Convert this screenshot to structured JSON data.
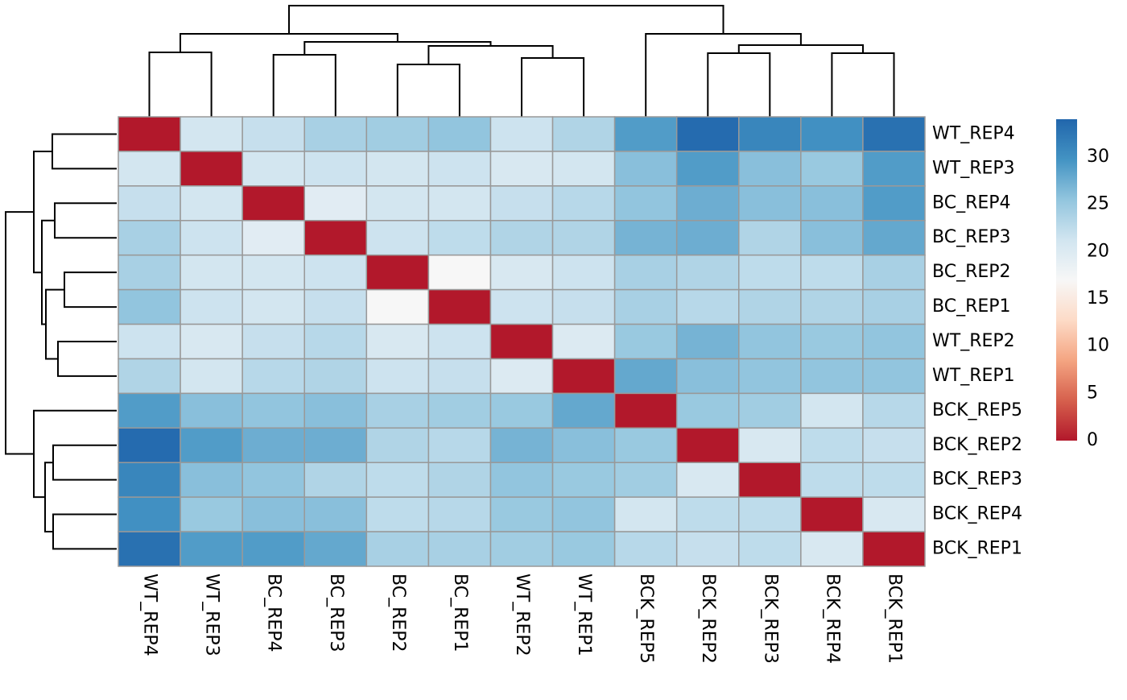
{
  "chart_data": {
    "type": "heatmap",
    "rows": [
      "WT_REP4",
      "WT_REP3",
      "BC_REP4",
      "BC_REP3",
      "BC_REP2",
      "BC_REP1",
      "WT_REP2",
      "WT_REP1",
      "BCK_REP5",
      "BCK_REP2",
      "BCK_REP3",
      "BCK_REP4",
      "BCK_REP1"
    ],
    "columns": [
      "WT_REP4",
      "WT_REP3",
      "BC_REP4",
      "BC_REP3",
      "BC_REP2",
      "BC_REP1",
      "WT_REP2",
      "WT_REP1",
      "BCK_REP5",
      "BCK_REP2",
      "BCK_REP3",
      "BCK_REP4",
      "BCK_REP1"
    ],
    "values": [
      [
        0,
        21,
        22,
        24,
        24.5,
        25.5,
        21.5,
        23.5,
        29,
        33.5,
        31,
        30,
        33
      ],
      [
        21,
        0,
        21,
        21.5,
        21,
        21.5,
        20.5,
        21,
        26,
        29,
        26,
        25,
        29
      ],
      [
        22,
        21,
        0,
        19.5,
        21,
        21,
        22,
        23,
        25.5,
        27.5,
        26,
        26,
        29
      ],
      [
        24,
        21.5,
        19.5,
        0,
        21.5,
        22.5,
        23.5,
        23.5,
        27,
        27.5,
        23.5,
        26,
        28
      ],
      [
        24,
        21,
        21,
        21.5,
        0,
        17,
        20.5,
        21.5,
        24,
        23.5,
        22.5,
        22.5,
        24
      ],
      [
        25.5,
        21.5,
        21,
        22,
        17,
        0,
        21.5,
        22,
        24,
        23,
        23.5,
        23.5,
        24
      ],
      [
        21.5,
        20.5,
        22,
        23,
        20.5,
        21.5,
        0,
        20,
        25,
        27,
        25.5,
        25,
        25.5
      ],
      [
        23.5,
        21,
        23,
        23.5,
        21.5,
        22,
        20,
        0,
        28,
        26,
        25.5,
        25.5,
        25.5
      ],
      [
        29,
        26,
        25.5,
        26,
        24,
        24.5,
        25,
        28,
        0,
        25,
        24.5,
        21,
        23
      ],
      [
        33.5,
        29,
        27.5,
        27.5,
        23.5,
        23,
        27,
        26,
        25,
        0,
        20.5,
        22.5,
        22
      ],
      [
        31,
        26,
        25.5,
        23.5,
        22.5,
        23.5,
        25.5,
        25,
        24.5,
        20.5,
        0,
        22.5,
        22.5
      ],
      [
        30,
        25,
        26,
        26,
        22.5,
        23,
        25,
        25.5,
        21,
        22.5,
        22.5,
        0,
        20.5
      ],
      [
        33,
        29,
        29,
        28,
        24,
        24,
        24.5,
        25,
        23,
        22,
        22.5,
        20.5,
        0
      ]
    ],
    "zlim": [
      0,
      34
    ],
    "zticks": [
      0,
      5,
      10,
      15,
      20,
      25,
      30
    ],
    "colorscale": [
      "#b2182b",
      "#d6604d",
      "#f4a582",
      "#fddbc7",
      "#f7f7f7",
      "#d1e5f0",
      "#92c5de",
      "#4393c3",
      "#2166ac"
    ],
    "cell_border_color": "#999999"
  }
}
